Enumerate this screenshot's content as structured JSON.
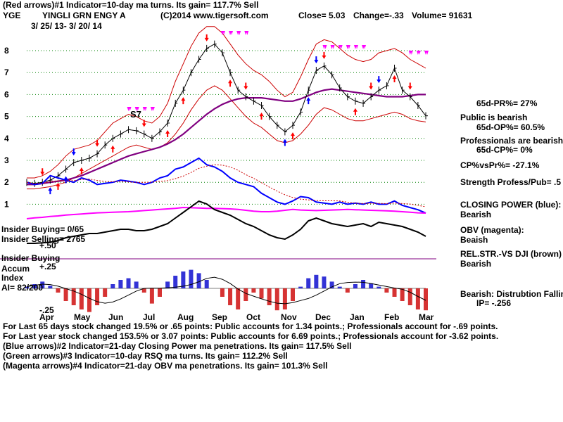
{
  "header": {
    "line1": "(Red arrows)#1 Indicator=10-day ma turns. Its gain= 117.7% Sell",
    "ticker": "YGE",
    "company": "YINGLI GRN ENGY A",
    "copyright": "(C)2014 www.tigersoft.com",
    "close": "Close= 5.03",
    "change": "Change=-.33",
    "volume": "Volume= 91631",
    "date_range": "3/ 25/ 13- 3/ 20/ 14"
  },
  "left_labels": {
    "insider_buying": "Insider Buying= 0/65",
    "insider_selling": "Insider Selling= 2765",
    "plus50": "+.50",
    "insider_buying2": "Insider Buying",
    "accum": "Accum",
    "plus25": "+.25",
    "index": "Index",
    "ai": "AI= 82/200",
    "minus25": "-.25",
    "s7": "S7"
  },
  "side_panel": {
    "pr65": "65d-PR%= 27%",
    "public": "Public is bearish",
    "op65": "65d-OP%= 60.5%",
    "professionals": "Professionals are bearish",
    "cp65": "65d-CP%= 0%",
    "cpvspr": "CP%vsPr%= -27.1%",
    "strength": "Strength Profess/Pub= .5",
    "closing_power": "CLOSING POWER (blue):",
    "closing_power_val": "Bearish",
    "obv": "OBV (magenta):",
    "obv_val": "Beaish",
    "relstr": "REL.STR.-VS DJI (brown)",
    "relstr_val": "Bearish",
    "bearish_dist": "Bearish: Distrubtion Falling",
    "ip": "IP= -.256"
  },
  "footer": {
    "line1": "For Last 65 days stock changed 19.5% or .65 points: Public accounts for 1.34 points.; Professionals account for -.69 points.",
    "line2": "For Last year stock changed 153.5% or 3.07 points: Public accounts for 6.69 points.; Professionals account for -3.62 points.",
    "line3": "(Blue arrows)#2 Indicator=21-day Closing Power ma penetrations. Its gain= 117.5% Sell",
    "line4": "(Green arrows)#3 Indicator=10-day RSQ ma turns. Its gain= 112.2% Sell",
    "line5": "(Magenta arrows)#4 Indicator=21-day OBV ma penetrations. Its gain= 101.3% Sell"
  },
  "colors": {
    "price": "#000000",
    "bands": "#cc0000",
    "ma65": "#800080",
    "closing_power": "#0000ff",
    "obv": "#ff00ff",
    "relstr": "#000000",
    "grid": "#008000",
    "accum_pos": "#0000cc",
    "accum_neg": "#cc0000",
    "arrow_red": "#ff0000",
    "arrow_blue": "#0000ff",
    "arrow_magenta": "#ff00ff"
  },
  "chart_data": {
    "type": "line",
    "title": "YINGLI GRN ENGY A",
    "y_ticks": [
      1,
      2,
      3,
      4,
      5,
      6,
      7,
      8
    ],
    "ylim": [
      0.6,
      8.7
    ],
    "x_ticks": [
      "Apr",
      "May",
      "Jun",
      "Jul",
      "Aug",
      "Sep",
      "Oct",
      "Nov",
      "Dec",
      "Jan",
      "Feb",
      "Mar"
    ],
    "accum_ticks": [
      "+.50",
      "+.25",
      "-.25"
    ],
    "price": [
      2.0,
      1.95,
      2.0,
      2.1,
      2.3,
      2.6,
      2.9,
      3.0,
      3.1,
      3.3,
      3.7,
      4.0,
      4.2,
      4.4,
      4.35,
      4.2,
      4.0,
      4.3,
      4.7,
      5.6,
      6.2,
      7.0,
      7.6,
      8.1,
      8.3,
      7.9,
      7.0,
      6.2,
      5.9,
      5.7,
      5.5,
      5.0,
      4.6,
      4.3,
      4.6,
      5.2,
      6.2,
      7.1,
      7.3,
      6.9,
      6.3,
      5.9,
      5.7,
      5.6,
      5.9,
      6.2,
      6.4,
      7.2,
      6.2,
      5.9,
      5.5,
      5.03
    ],
    "upper_band": [
      2.2,
      2.2,
      2.3,
      2.5,
      2.8,
      3.2,
      3.5,
      3.6,
      3.7,
      3.9,
      4.3,
      4.7,
      4.9,
      5.1,
      5.0,
      4.8,
      4.7,
      5.0,
      5.6,
      6.6,
      7.4,
      8.2,
      8.8,
      9.1,
      9.1,
      8.8,
      8.3,
      7.8,
      7.4,
      7.1,
      6.9,
      6.6,
      6.2,
      5.9,
      6.1,
      6.8,
      7.6,
      8.3,
      8.5,
      8.4,
      8.1,
      7.8,
      7.6,
      7.5,
      7.6,
      7.9,
      8.0,
      8.1,
      7.9,
      7.6,
      7.4,
      7.2
    ],
    "lower_band": [
      1.7,
      1.7,
      1.75,
      1.8,
      1.9,
      2.0,
      2.2,
      2.4,
      2.6,
      2.8,
      3.0,
      3.2,
      3.4,
      3.6,
      3.7,
      3.6,
      3.5,
      3.6,
      3.8,
      4.2,
      4.7,
      5.3,
      5.8,
      6.2,
      6.4,
      6.2,
      5.8,
      5.4,
      5.0,
      4.7,
      4.5,
      4.2,
      3.9,
      3.8,
      3.9,
      4.2,
      4.6,
      5.1,
      5.4,
      5.3,
      5.1,
      4.9,
      4.8,
      4.8,
      4.9,
      5.0,
      5.1,
      5.2,
      5.1,
      4.9,
      4.8,
      4.75
    ],
    "ma65": [
      1.9,
      1.9,
      1.95,
      2.0,
      2.05,
      2.1,
      2.2,
      2.3,
      2.45,
      2.6,
      2.75,
      2.9,
      3.05,
      3.2,
      3.3,
      3.4,
      3.5,
      3.6,
      3.75,
      3.95,
      4.2,
      4.5,
      4.8,
      5.1,
      5.35,
      5.55,
      5.7,
      5.8,
      5.85,
      5.85,
      5.85,
      5.8,
      5.75,
      5.7,
      5.7,
      5.8,
      5.95,
      6.1,
      6.2,
      6.25,
      6.2,
      6.15,
      6.1,
      6.05,
      6.0,
      5.95,
      5.9,
      5.9,
      5.9,
      5.95,
      6.0,
      6.0
    ],
    "closing_power": [
      2.0,
      1.9,
      1.95,
      2.3,
      2.2,
      2.1,
      2.0,
      2.2,
      2.1,
      1.9,
      1.95,
      2.0,
      2.1,
      2.05,
      2.0,
      1.9,
      2.0,
      2.2,
      2.3,
      2.6,
      2.7,
      2.9,
      3.1,
      2.8,
      2.7,
      2.5,
      2.2,
      2.0,
      1.9,
      1.8,
      1.5,
      1.3,
      1.1,
      1.0,
      1.15,
      1.35,
      1.3,
      1.1,
      1.05,
      1.0,
      1.1,
      1.0,
      1.05,
      1.0,
      1.1,
      1.0,
      1.0,
      1.15,
      0.95,
      0.85,
      0.75,
      0.6
    ],
    "obv": [
      -0.15,
      -0.12,
      -0.1,
      -0.07,
      -0.05,
      -0.02,
      0.0,
      0.02,
      0.04,
      0.06,
      0.07,
      0.08,
      0.09,
      0.1,
      0.12,
      0.14,
      0.16,
      0.18,
      0.2,
      0.22,
      0.25,
      0.24,
      0.23,
      0.22,
      0.22,
      0.21,
      0.2,
      0.18,
      0.15,
      0.12,
      0.1,
      0.1,
      0.12,
      0.15,
      0.18,
      0.16,
      0.15,
      0.14,
      0.15,
      0.16,
      0.17,
      0.18,
      0.17,
      0.16,
      0.15,
      0.14,
      0.13,
      0.12,
      0.1,
      0.08,
      0.06,
      0.05
    ],
    "relstr": [
      -0.7,
      -0.7,
      -0.68,
      -0.66,
      -0.6,
      -0.5,
      -0.45,
      -0.4,
      -0.35,
      -0.35,
      -0.3,
      -0.25,
      -0.2,
      -0.2,
      -0.25,
      -0.25,
      -0.2,
      -0.1,
      0.0,
      0.2,
      0.4,
      0.6,
      0.8,
      0.7,
      0.5,
      0.4,
      0.3,
      0.15,
      0.0,
      -0.1,
      -0.25,
      -0.4,
      -0.5,
      -0.55,
      -0.4,
      -0.2,
      0.1,
      0.2,
      0.1,
      0.0,
      -0.05,
      -0.1,
      -0.05,
      0.0,
      -0.1,
      0.05,
      0.0,
      -0.05,
      -0.1,
      -0.2,
      -0.3,
      -0.45
    ],
    "accum": [
      0.02,
      0.05,
      0.08,
      0.03,
      -0.05,
      -0.15,
      -0.2,
      -0.25,
      -0.28,
      -0.2,
      -0.1,
      0.05,
      0.1,
      0.12,
      0.08,
      -0.05,
      -0.18,
      -0.1,
      0.08,
      0.15,
      0.2,
      0.22,
      0.18,
      0.1,
      0.0,
      -0.1,
      -0.2,
      -0.25,
      -0.15,
      -0.05,
      -0.12,
      -0.2,
      -0.26,
      -0.25,
      -0.15,
      0.02,
      0.12,
      0.16,
      0.14,
      0.08,
      0.02,
      -0.05,
      0.05,
      0.1,
      0.06,
      0.02,
      -0.05,
      -0.1,
      -0.15,
      -0.2,
      -0.25,
      -0.26
    ]
  }
}
